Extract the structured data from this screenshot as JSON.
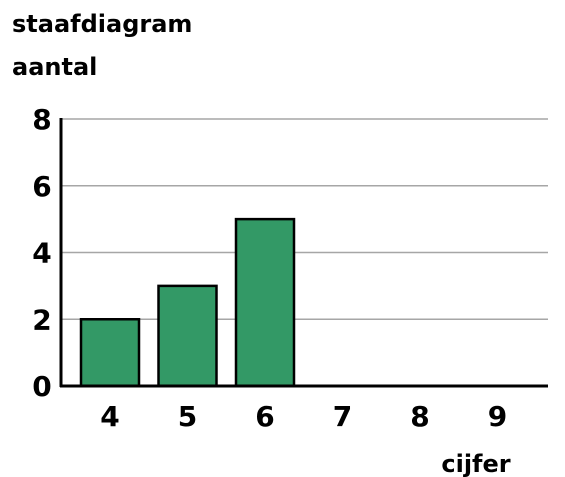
{
  "chart_data": {
    "type": "bar",
    "title": "staafdiagram",
    "ylabel": "aantal",
    "xlabel": "cijfer",
    "categories": [
      "4",
      "5",
      "6",
      "7",
      "8",
      "9"
    ],
    "values": [
      2,
      3,
      5,
      0,
      0,
      0
    ],
    "yticks": [
      "0",
      "2",
      "4",
      "6",
      "8"
    ],
    "ylim": [
      0,
      8
    ],
    "grid": true,
    "bar_color": "#339966",
    "bar_stroke": "#000000",
    "grid_color": "#a6a6a6"
  }
}
